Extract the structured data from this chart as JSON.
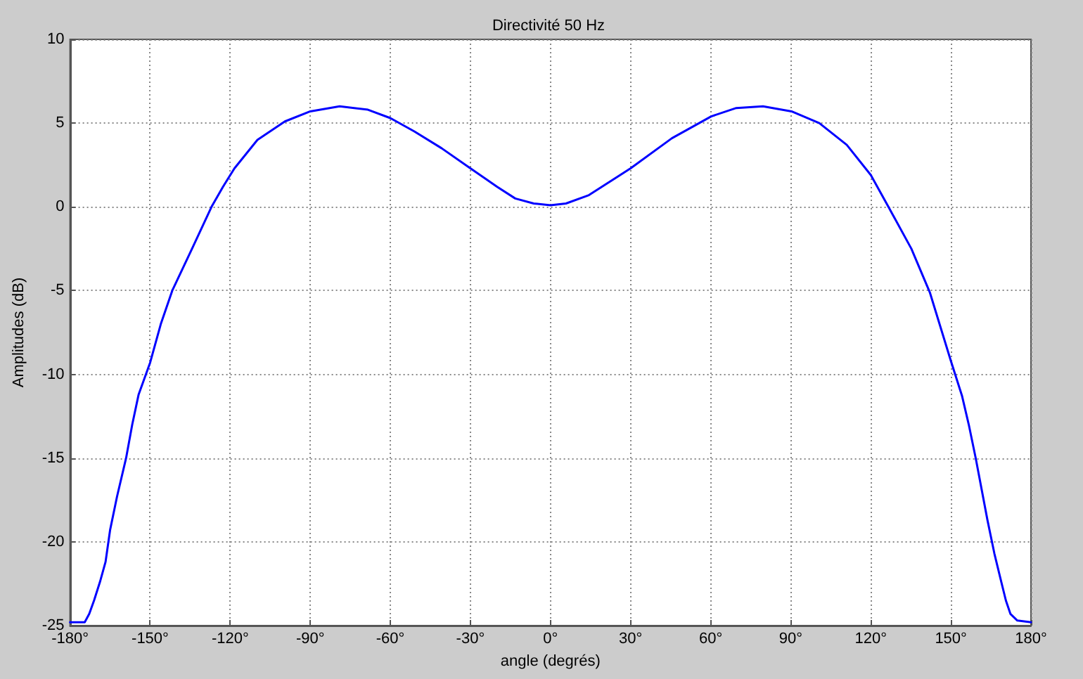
{
  "chart_data": {
    "type": "line",
    "title": "Directivité 50 Hz",
    "xlabel": "angle (degrés)",
    "ylabel": "Amplitudes (dB)",
    "x": [
      -180,
      -174.5,
      -172.8,
      -171,
      -168.8,
      -166.7,
      -165,
      -162.4,
      -159,
      -156.7,
      -154.3,
      -150,
      -146,
      -141.7,
      -134.3,
      -127,
      -122.7,
      -118.4,
      -109.8,
      -99.5,
      -90,
      -79,
      -68.4,
      -60,
      -51,
      -40.8,
      -30,
      -20,
      -13.2,
      -6.3,
      0,
      5.8,
      14.4,
      30,
      45.5,
      60.2,
      69.6,
      79.6,
      90.3,
      100.7,
      111,
      120,
      126.6,
      135.2,
      142.1,
      150,
      154.2,
      156.7,
      159.3,
      163.7,
      166.3,
      168.9,
      170.6,
      172.3,
      174.9,
      180
    ],
    "series": [
      {
        "color": "#0000ff",
        "values": [
          -24.8,
          -24.8,
          -24.3,
          -23.5,
          -22.4,
          -21.2,
          -19.3,
          -17.3,
          -15,
          -13,
          -11.2,
          -9.3,
          -7,
          -5,
          -2.5,
          0,
          1.2,
          2.3,
          4,
          5.1,
          5.7,
          6,
          5.8,
          5.3,
          4.5,
          3.5,
          2.3,
          1.2,
          0.5,
          0.2,
          0.1,
          0.2,
          0.7,
          2.3,
          4.1,
          5.4,
          5.9,
          6,
          5.7,
          5,
          3.7,
          1.9,
          0,
          -2.5,
          -5.1,
          -9.2,
          -11.3,
          -13,
          -15,
          -18.7,
          -20.7,
          -22.4,
          -23.5,
          -24.3,
          -24.7,
          -24.8
        ]
      }
    ],
    "xlim": [
      -180,
      180
    ],
    "ylim": [
      -25,
      10
    ],
    "xticks": [
      {
        "value": -180,
        "label": "-180°"
      },
      {
        "value": -150,
        "label": "-150°"
      },
      {
        "value": -120,
        "label": "-120°"
      },
      {
        "value": -90,
        "label": "-90°"
      },
      {
        "value": -60,
        "label": "-60°"
      },
      {
        "value": -30,
        "label": "-30°"
      },
      {
        "value": 0,
        "label": "0°"
      },
      {
        "value": 30,
        "label": "30°"
      },
      {
        "value": 60,
        "label": "60°"
      },
      {
        "value": 90,
        "label": "90°"
      },
      {
        "value": 120,
        "label": "120°"
      },
      {
        "value": 150,
        "label": "150°"
      },
      {
        "value": 180,
        "label": "180°"
      }
    ],
    "yticks": [
      -25,
      -20,
      -15,
      -10,
      -5,
      0,
      5,
      10
    ],
    "grid": true,
    "marker": "none",
    "line_style": "solid"
  }
}
